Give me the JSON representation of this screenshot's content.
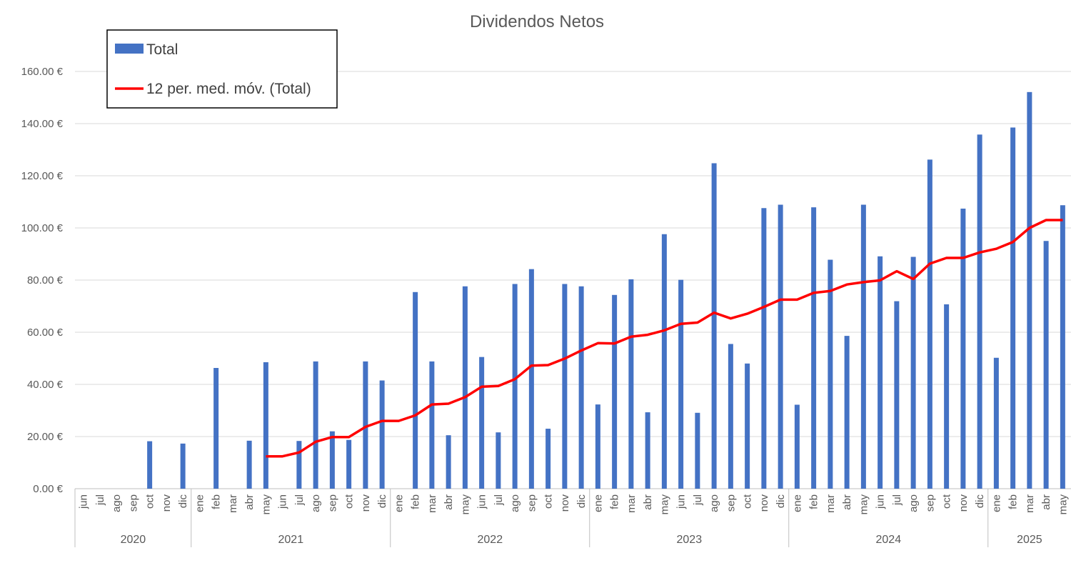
{
  "chart_data": {
    "type": "bar",
    "title": "Dividendos Netos",
    "ylim": [
      0,
      160
    ],
    "y_ticks": [
      "0.00 €",
      "20.00 €",
      "40.00 €",
      "60.00 €",
      "80.00 €",
      "100.00 €",
      "120.00 €",
      "140.00 €",
      "160.00 €"
    ],
    "grid": true,
    "legend_position": "top-left",
    "colors": {
      "bars": "#4472c4",
      "moving_average": "#ff0000"
    },
    "legend": [
      "Total",
      "12 per. med. móv. (Total)"
    ],
    "year_groups": [
      {
        "year": "2020",
        "months": [
          "jun",
          "jul",
          "ago",
          "sep",
          "oct",
          "nov",
          "dic"
        ]
      },
      {
        "year": "2021",
        "months": [
          "ene",
          "feb",
          "mar",
          "abr",
          "may",
          "jun",
          "jul",
          "ago",
          "sep",
          "oct",
          "nov",
          "dic"
        ]
      },
      {
        "year": "2022",
        "months": [
          "ene",
          "feb",
          "mar",
          "abr",
          "may",
          "jun",
          "jul",
          "ago",
          "sep",
          "oct",
          "nov",
          "dic"
        ]
      },
      {
        "year": "2023",
        "months": [
          "ene",
          "feb",
          "mar",
          "abr",
          "may",
          "jun",
          "jul",
          "ago",
          "sep",
          "oct",
          "nov",
          "dic"
        ]
      },
      {
        "year": "2024",
        "months": [
          "ene",
          "feb",
          "mar",
          "abr",
          "may",
          "jun",
          "jul",
          "ago",
          "sep",
          "oct",
          "nov",
          "dic"
        ]
      },
      {
        "year": "2025",
        "months": [
          "ene",
          "feb",
          "mar",
          "abr",
          "may"
        ]
      }
    ],
    "series": [
      {
        "name": "Total",
        "type": "bar",
        "values": [
          0,
          0,
          0,
          0,
          18.2,
          0,
          17.3,
          0,
          46.3,
          0,
          18.4,
          48.5,
          0,
          18.3,
          48.8,
          22,
          18.7,
          48.8,
          41.5,
          0,
          75.4,
          48.8,
          20.5,
          77.6,
          50.5,
          21.6,
          78.5,
          84.2,
          23,
          78.5,
          77.6,
          32.3,
          74.3,
          80.3,
          29.3,
          97.6,
          80.1,
          29.1,
          124.8,
          55.5,
          48,
          107.6,
          108.9,
          32.2,
          107.9,
          87.8,
          58.6,
          108.9,
          89.1,
          71.9,
          88.9,
          126.2,
          70.7,
          107.4,
          135.8,
          50.2,
          138.5,
          152.1,
          95,
          108.7
        ]
      },
      {
        "name": "12 per. med. móv. (Total)",
        "type": "line",
        "values": [
          null,
          null,
          null,
          null,
          null,
          null,
          null,
          null,
          null,
          null,
          null,
          12.4,
          12.4,
          13.9,
          18,
          19.8,
          19.8,
          23.7,
          26,
          26,
          28.1,
          32.3,
          32.6,
          35.1,
          39.1,
          39.4,
          42,
          47.2,
          47.4,
          49.9,
          53,
          55.8,
          55.7,
          58.3,
          59,
          60.7,
          63.2,
          63.7,
          67.5,
          65.3,
          67.1,
          69.7,
          72.5,
          72.5,
          75.1,
          75.8,
          78.3,
          79.2,
          79.9,
          83.4,
          80.4,
          86.3,
          88.5,
          88.5,
          90.6,
          92,
          94.6,
          100,
          103,
          103
        ]
      }
    ]
  }
}
